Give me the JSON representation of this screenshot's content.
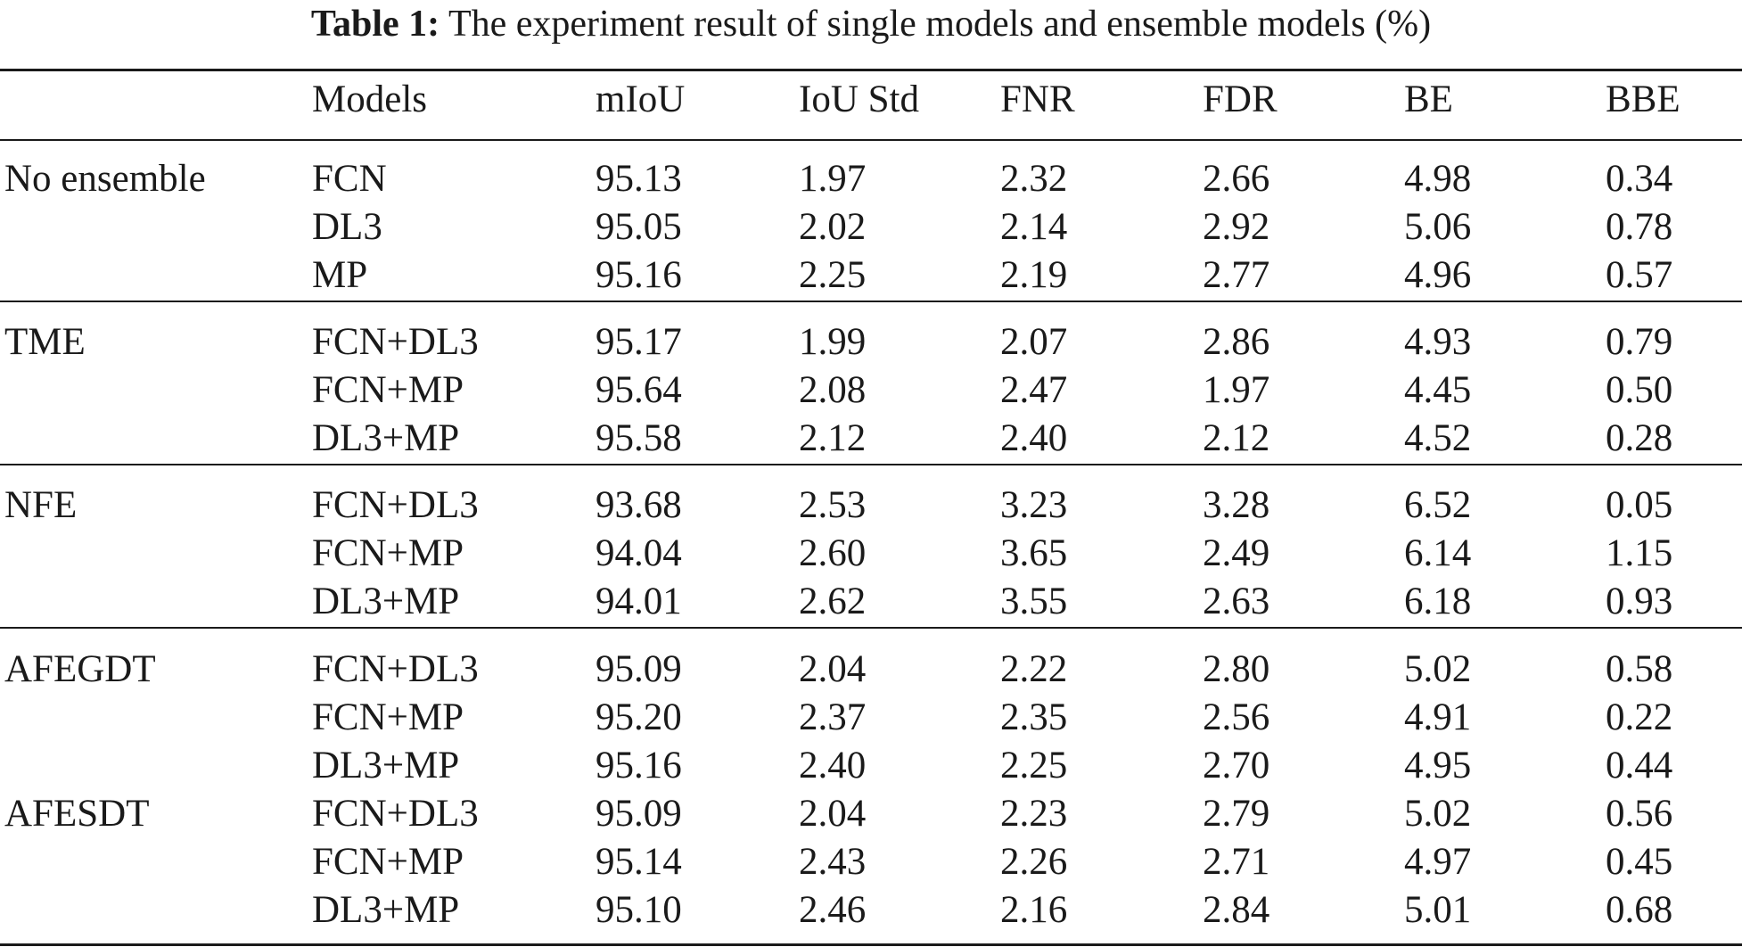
{
  "caption": {
    "label": "Table 1:",
    "text": "The experiment result of single models and ensemble models (%)"
  },
  "table": {
    "headers": [
      "",
      "Models",
      "mIoU",
      "IoU Std",
      "FNR",
      "FDR",
      "BE",
      "BBE"
    ],
    "groups": [
      {
        "name": "No ensemble",
        "rows": [
          [
            "FCN",
            "95.13",
            "1.97",
            "2.32",
            "2.66",
            "4.98",
            "0.34"
          ],
          [
            "DL3",
            "95.05",
            "2.02",
            "2.14",
            "2.92",
            "5.06",
            "0.78"
          ],
          [
            "MP",
            "95.16",
            "2.25",
            "2.19",
            "2.77",
            "4.96",
            "0.57"
          ]
        ]
      },
      {
        "name": "TME",
        "rows": [
          [
            "FCN+DL3",
            "95.17",
            "1.99",
            "2.07",
            "2.86",
            "4.93",
            "0.79"
          ],
          [
            "FCN+MP",
            "95.64",
            "2.08",
            "2.47",
            "1.97",
            "4.45",
            "0.50"
          ],
          [
            "DL3+MP",
            "95.58",
            "2.12",
            "2.40",
            "2.12",
            "4.52",
            "0.28"
          ]
        ]
      },
      {
        "name": "NFE",
        "rows": [
          [
            "FCN+DL3",
            "93.68",
            "2.53",
            "3.23",
            "3.28",
            "6.52",
            "0.05"
          ],
          [
            "FCN+MP",
            "94.04",
            "2.60",
            "3.65",
            "2.49",
            "6.14",
            "1.15"
          ],
          [
            "DL3+MP",
            "94.01",
            "2.62",
            "3.55",
            "2.63",
            "6.18",
            "0.93"
          ]
        ]
      },
      {
        "name": "AFEGDT",
        "rows": [
          [
            "FCN+DL3",
            "95.09",
            "2.04",
            "2.22",
            "2.80",
            "5.02",
            "0.58"
          ],
          [
            "FCN+MP",
            "95.20",
            "2.37",
            "2.35",
            "2.56",
            "4.91",
            "0.22"
          ],
          [
            "DL3+MP",
            "95.16",
            "2.40",
            "2.25",
            "2.70",
            "4.95",
            "0.44"
          ]
        ]
      },
      {
        "name": "AFESDT",
        "rows": [
          [
            "FCN+DL3",
            "95.09",
            "2.04",
            "2.23",
            "2.79",
            "5.02",
            "0.56"
          ],
          [
            "FCN+MP",
            "95.14",
            "2.43",
            "2.26",
            "2.71",
            "4.97",
            "0.45"
          ],
          [
            "DL3+MP",
            "95.10",
            "2.46",
            "2.16",
            "2.84",
            "5.01",
            "0.68"
          ]
        ]
      }
    ]
  }
}
